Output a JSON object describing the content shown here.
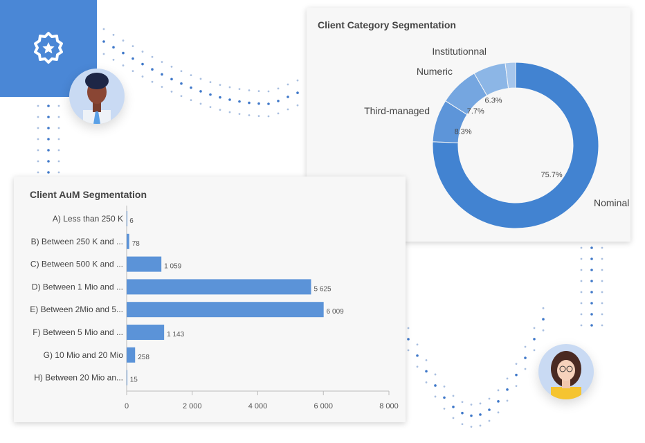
{
  "chart_data": [
    {
      "type": "pie",
      "variant": "donut",
      "title": "Client Category Segmentation",
      "slices": [
        {
          "label": "Nominal",
          "value": 75.7,
          "display": "75.7%",
          "color": "#4283d1"
        },
        {
          "label": "Third-managed",
          "value": 8.3,
          "display": "8.3%",
          "color": "#5d95d9"
        },
        {
          "label": "Numeric",
          "value": 7.7,
          "display": "7.7%",
          "color": "#75a6e0"
        },
        {
          "label": "Institutionnal",
          "value": 6.3,
          "display": "6.3%",
          "color": "#8cb6e6"
        }
      ],
      "remainder_color": "#a6c6ec"
    },
    {
      "type": "bar",
      "orientation": "horizontal",
      "title": "Client AuM Segmentation",
      "categories": [
        "A) Less than 250 K",
        "B) Between 250 K and ...",
        "C) Between 500 K and ...",
        "D) Between 1 Mio and ...",
        "E) Between 2Mio and 5...",
        "F) Between 5 Mio and ...",
        "G) 10 Mio and 20 Mio",
        "H) Between 20 Mio an..."
      ],
      "values": [
        6,
        78,
        1059,
        5625,
        6009,
        1143,
        258,
        15
      ],
      "value_labels": [
        "6",
        "78",
        "1 059",
        "5 625",
        "6 009",
        "1 143",
        "258",
        "15"
      ],
      "xlim": [
        0,
        8000
      ],
      "xticks": [
        0,
        2000,
        4000,
        6000,
        8000
      ],
      "xtick_labels": [
        "0",
        "2 000",
        "4 000",
        "6 000",
        "8 000"
      ],
      "bar_color": "#5b93d8"
    }
  ]
}
